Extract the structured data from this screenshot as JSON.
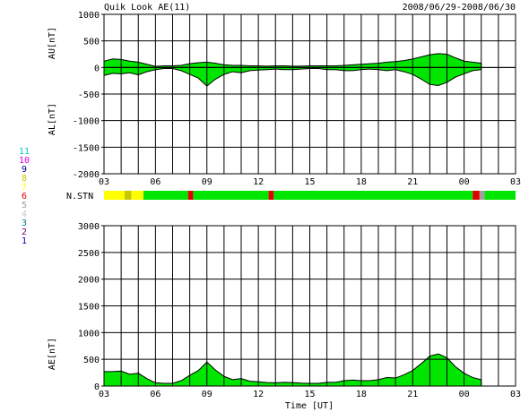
{
  "header": {
    "title": "Quik Look AE(11)",
    "date_range": "2008/06/29-2008/06/30"
  },
  "station_legend": {
    "title_label": "N.STN",
    "entries": [
      {
        "label": "11",
        "color": "#00c8c8"
      },
      {
        "label": "10",
        "color": "#e000e0"
      },
      {
        "label": "9",
        "color": "#000090"
      },
      {
        "label": "8",
        "color": "#c8c800"
      },
      {
        "label": "7",
        "color": "#ffff00"
      },
      {
        "label": "6",
        "color": "#e00000"
      },
      {
        "label": "5",
        "color": "#a0a0a0"
      },
      {
        "label": "4",
        "color": "#c8c8c8"
      },
      {
        "label": "3",
        "color": "#008080"
      },
      {
        "label": "2",
        "color": "#800080"
      },
      {
        "label": "1",
        "color": "#0000c0"
      }
    ]
  },
  "chart_data": [
    {
      "type": "area",
      "panel": "AU/AL",
      "ylabel_top": "AU[nT]",
      "ylabel_bottom": "AL[nT]",
      "ylim": [
        -2000,
        1000
      ],
      "yticks": [
        1000,
        500,
        0,
        -500,
        -1000,
        -1500,
        -2000
      ],
      "xlim": [
        3,
        27
      ],
      "xticks": [
        "03",
        "06",
        "09",
        "12",
        "15",
        "18",
        "21",
        "00",
        "03"
      ],
      "grid": true,
      "au": {
        "x": [
          3,
          3.5,
          4,
          4.5,
          5,
          5.5,
          6,
          6.5,
          7,
          7.5,
          8,
          8.5,
          9,
          9.5,
          10,
          10.5,
          11,
          11.5,
          12,
          12.5,
          13,
          13.5,
          14,
          14.5,
          15,
          15.5,
          16,
          16.5,
          17,
          17.5,
          18,
          18.5,
          19,
          19.5,
          20,
          20.5,
          21,
          21.5,
          22,
          22.5,
          23,
          23.5,
          24,
          24.5,
          25
        ],
        "y": [
          120,
          160,
          150,
          120,
          100,
          60,
          20,
          30,
          30,
          40,
          70,
          90,
          100,
          80,
          50,
          40,
          40,
          30,
          30,
          25,
          30,
          30,
          25,
          25,
          30,
          30,
          30,
          30,
          40,
          50,
          60,
          70,
          80,
          100,
          110,
          130,
          160,
          200,
          240,
          260,
          250,
          180,
          120,
          100,
          80
        ]
      },
      "al": {
        "x": [
          3,
          3.5,
          4,
          4.5,
          5,
          5.5,
          6,
          6.5,
          7,
          7.5,
          8,
          8.5,
          9,
          9.5,
          10,
          10.5,
          11,
          11.5,
          12,
          12.5,
          13,
          13.5,
          14,
          14.5,
          15,
          15.5,
          16,
          16.5,
          17,
          17.5,
          18,
          18.5,
          19,
          19.5,
          20,
          20.5,
          21,
          21.5,
          22,
          22.5,
          23,
          23.5,
          24,
          24.5,
          25
        ],
        "y": [
          -150,
          -110,
          -120,
          -100,
          -140,
          -80,
          -40,
          -20,
          -20,
          -60,
          -130,
          -200,
          -350,
          -220,
          -130,
          -80,
          -100,
          -60,
          -50,
          -40,
          -30,
          -40,
          -40,
          -30,
          -20,
          -20,
          -40,
          -40,
          -60,
          -60,
          -40,
          -30,
          -40,
          -60,
          -40,
          -80,
          -130,
          -220,
          -320,
          -340,
          -280,
          -180,
          -120,
          -60,
          -40
        ]
      }
    },
    {
      "type": "area",
      "panel": "AE",
      "ylabel": "AE[nT]",
      "xlabel": "Time [UT]",
      "ylim": [
        0,
        3000
      ],
      "yticks": [
        3000,
        2500,
        2000,
        1500,
        1000,
        500,
        0
      ],
      "xlim": [
        3,
        27
      ],
      "xticks": [
        "03",
        "06",
        "09",
        "12",
        "15",
        "18",
        "21",
        "00",
        "03"
      ],
      "grid": true,
      "ae": {
        "x": [
          3,
          3.5,
          4,
          4.5,
          5,
          5.5,
          6,
          6.5,
          7,
          7.5,
          8,
          8.5,
          9,
          9.5,
          10,
          10.5,
          11,
          11.5,
          12,
          12.5,
          13,
          13.5,
          14,
          14.5,
          15,
          15.5,
          16,
          16.5,
          17,
          17.5,
          18,
          18.5,
          19,
          19.5,
          20,
          20.5,
          21,
          21.5,
          22,
          22.5,
          23,
          23.5,
          24,
          24.5,
          25
        ],
        "y": [
          270,
          270,
          280,
          220,
          240,
          140,
          60,
          50,
          50,
          100,
          200,
          290,
          450,
          300,
          180,
          120,
          140,
          90,
          80,
          65,
          60,
          70,
          65,
          55,
          50,
          50,
          70,
          70,
          100,
          110,
          100,
          100,
          120,
          160,
          150,
          210,
          290,
          420,
          560,
          600,
          530,
          360,
          240,
          160,
          120
        ]
      },
      "nstn_segments": [
        {
          "from": 3.0,
          "to": 4.2,
          "level": 7
        },
        {
          "from": 4.2,
          "to": 4.6,
          "level": 8
        },
        {
          "from": 4.6,
          "to": 5.3,
          "level": 7
        },
        {
          "from": 5.3,
          "to": 7.9,
          "level": 11
        },
        {
          "from": 7.9,
          "to": 8.2,
          "level": 6
        },
        {
          "from": 8.2,
          "to": 12.6,
          "level": 11
        },
        {
          "from": 12.6,
          "to": 12.9,
          "level": 6
        },
        {
          "from": 12.9,
          "to": 24.5,
          "level": 11
        },
        {
          "from": 24.5,
          "to": 24.9,
          "level": 6
        },
        {
          "from": 24.9,
          "to": 25.2,
          "level": 5
        },
        {
          "from": 25.2,
          "to": 27.0,
          "level": 11
        }
      ]
    }
  ]
}
